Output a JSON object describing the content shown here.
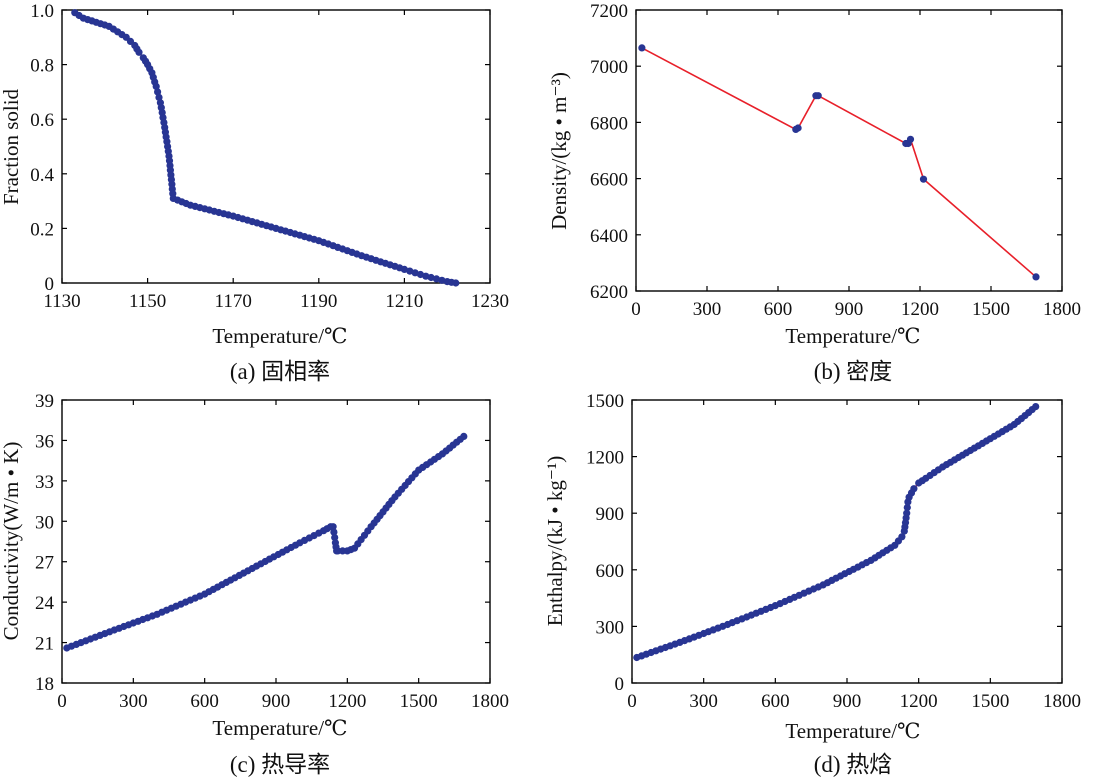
{
  "figure": {
    "colors": {
      "line": "#e8202a",
      "marker": "#283593",
      "axis": "#000000"
    },
    "panels": [
      {
        "caption": "(a) 固相率"
      },
      {
        "caption": "(b) 密度"
      },
      {
        "caption": "(c) 热导率"
      },
      {
        "caption": "(d) 热焓"
      }
    ]
  },
  "chart_data": [
    {
      "type": "line",
      "xlabel": "Temperature/℃",
      "ylabel": "Fraction solid",
      "xlim": [
        1130,
        1230
      ],
      "ylim": [
        0,
        1.0
      ],
      "xticks": [
        1130,
        1150,
        1170,
        1190,
        1210,
        1230
      ],
      "yticks": [
        0,
        0.2,
        0.4,
        0.6,
        0.8,
        1.0
      ],
      "ytick_labels": [
        "0",
        "0.2",
        "0.4",
        "0.6",
        "0.8",
        "1.0"
      ],
      "markers": "dense",
      "x": [
        1133,
        1135,
        1138,
        1141,
        1143,
        1145,
        1147,
        1148,
        1149,
        1150,
        1151,
        1152,
        1153,
        1154,
        1155,
        1156,
        1160,
        1170,
        1180,
        1190,
        1200,
        1210,
        1215,
        1220,
        1222
      ],
      "y": [
        0.99,
        0.97,
        0.955,
        0.94,
        0.92,
        0.9,
        0.87,
        0.845,
        0.825,
        0.8,
        0.77,
        0.72,
        0.66,
        0.57,
        0.465,
        0.31,
        0.285,
        0.245,
        0.2,
        0.155,
        0.1,
        0.05,
        0.025,
        0.005,
        0.0
      ]
    },
    {
      "type": "line",
      "xlabel": "Temperature/℃",
      "ylabel": "Density/(kg • m⁻³)",
      "xlim": [
        0,
        1800
      ],
      "ylim": [
        6200,
        7200
      ],
      "xticks": [
        0,
        300,
        600,
        900,
        1200,
        1500,
        1800
      ],
      "yticks": [
        6200,
        6400,
        6600,
        6800,
        7000,
        7200
      ],
      "markers": "points",
      "x": [
        25,
        675,
        685,
        760,
        770,
        1140,
        1150,
        1160,
        1215,
        1690
      ],
      "y": [
        7065,
        6775,
        6780,
        6895,
        6895,
        6725,
        6725,
        6740,
        6598,
        6250
      ]
    },
    {
      "type": "line",
      "xlabel": "Temperature/℃",
      "ylabel": "Conductivity(W/m • K)",
      "xlim": [
        0,
        1800
      ],
      "ylim": [
        18,
        39
      ],
      "xticks": [
        0,
        300,
        600,
        900,
        1200,
        1500,
        1800
      ],
      "yticks": [
        18,
        21,
        24,
        27,
        30,
        33,
        36,
        39
      ],
      "markers": "dense",
      "x": [
        20,
        200,
        400,
        600,
        800,
        1000,
        1100,
        1130,
        1140,
        1150,
        1155,
        1160,
        1200,
        1230,
        1300,
        1400,
        1500,
        1600,
        1690
      ],
      "y": [
        20.6,
        21.8,
        23.1,
        24.6,
        26.5,
        28.4,
        29.3,
        29.6,
        29.6,
        28.4,
        27.8,
        27.8,
        27.8,
        28.0,
        29.6,
        31.8,
        33.8,
        35.0,
        36.3
      ]
    },
    {
      "type": "line",
      "xlabel": "Temperature/℃",
      "ylabel": "Enthalpy/(kJ • kg⁻¹)",
      "xlim": [
        0,
        1800
      ],
      "ylim": [
        0,
        1500
      ],
      "xticks": [
        0,
        300,
        600,
        900,
        1200,
        1500,
        1800
      ],
      "yticks": [
        0,
        300,
        600,
        900,
        1200,
        1500
      ],
      "markers": "dense",
      "x": [
        20,
        200,
        400,
        600,
        800,
        1000,
        1100,
        1130,
        1140,
        1145,
        1150,
        1155,
        1160,
        1180,
        1200,
        1230,
        1300,
        1400,
        1500,
        1600,
        1690
      ],
      "y": [
        135,
        215,
        310,
        410,
        520,
        650,
        730,
        775,
        805,
        850,
        900,
        960,
        985,
        1030,
        1060,
        1085,
        1145,
        1220,
        1295,
        1370,
        1465
      ]
    }
  ]
}
